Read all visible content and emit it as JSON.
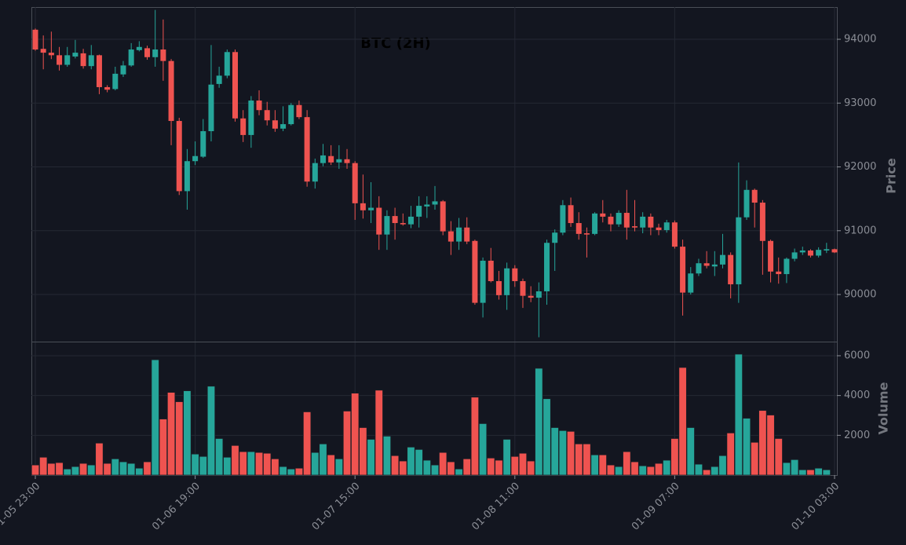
{
  "chart_data": {
    "type": "candlestick",
    "title": "BTC (2H)",
    "ylabel": "Price",
    "y2label": "Volume",
    "categories": [
      "01-05 23:00",
      null,
      null,
      null,
      null,
      null,
      null,
      null,
      null,
      null,
      null,
      null,
      null,
      null,
      null,
      null,
      null,
      null,
      null,
      null,
      "01-06 19:00",
      null,
      null,
      null,
      null,
      null,
      null,
      null,
      null,
      null,
      null,
      null,
      null,
      null,
      null,
      null,
      null,
      null,
      null,
      null,
      "01-07 15:00",
      null,
      null,
      null,
      null,
      null,
      null,
      null,
      null,
      null,
      null,
      null,
      null,
      null,
      null,
      null,
      null,
      null,
      null,
      null,
      "01-08 11:00",
      null,
      null,
      null,
      null,
      null,
      null,
      null,
      null,
      null,
      null,
      null,
      null,
      null,
      null,
      null,
      null,
      null,
      null,
      null,
      "01-09 07:00",
      null,
      null,
      null,
      null,
      null,
      null,
      null,
      null,
      null,
      null,
      null,
      null,
      null,
      null,
      null,
      null,
      null,
      null,
      null,
      "01-10 03:00"
    ],
    "open": [
      94150,
      93850,
      93790,
      93750,
      93600,
      93730,
      93780,
      93580,
      93750,
      93250,
      93220,
      93450,
      93590,
      93830,
      93860,
      93720,
      93840,
      93660,
      92720,
      91620,
      92090,
      92160,
      92560,
      93300,
      93430,
      93800,
      92760,
      92500,
      93040,
      92890,
      92730,
      92600,
      92670,
      92970,
      92780,
      91770,
      92060,
      92170,
      92070,
      92120,
      92060,
      91430,
      91320,
      91360,
      90940,
      91230,
      91120,
      91100,
      91220,
      91380,
      91410,
      91460,
      90990,
      90830,
      91050,
      90840,
      89870,
      90530,
      90210,
      89990,
      90410,
      90210,
      89980,
      89950,
      90050,
      90810,
      90970,
      91400,
      91120,
      90960,
      90950,
      91270,
      91220,
      91100,
      91280,
      91070,
      91050,
      91220,
      91050,
      91010,
      91130,
      90750,
      90030,
      90330,
      90490,
      90440,
      90470,
      90620,
      90160,
      91210,
      91640,
      91440,
      90840,
      90360,
      90320,
      90560,
      90660,
      90690,
      90610,
      90690,
      90710
    ],
    "high": [
      94170,
      94060,
      94120,
      93880,
      93880,
      93990,
      93850,
      93910,
      93760,
      93280,
      93570,
      93660,
      93940,
      93970,
      93900,
      94460,
      94310,
      93690,
      92770,
      92280,
      92400,
      92750,
      93910,
      93570,
      93840,
      93840,
      92890,
      93110,
      93200,
      93020,
      92890,
      92950,
      93000,
      93040,
      92890,
      92130,
      92360,
      92340,
      92340,
      92280,
      92090,
      91880,
      91760,
      91540,
      91320,
      91360,
      91270,
      91390,
      91540,
      91540,
      91700,
      91480,
      91150,
      91200,
      91210,
      90860,
      90580,
      90730,
      90370,
      90500,
      90460,
      90250,
      90130,
      90190,
      90860,
      91020,
      91480,
      91520,
      91290,
      91050,
      91290,
      91480,
      91270,
      91320,
      91640,
      91480,
      91290,
      91270,
      91110,
      91170,
      91160,
      90860,
      90430,
      90560,
      90680,
      90680,
      90950,
      90660,
      92070,
      91790,
      91660,
      91480,
      90860,
      90580,
      90580,
      90720,
      90750,
      90710,
      90740,
      90810,
      90720
    ],
    "low": [
      93820,
      93530,
      93690,
      93510,
      93570,
      93700,
      93540,
      93530,
      93140,
      93170,
      93200,
      93410,
      93570,
      93810,
      93680,
      93570,
      93350,
      92340,
      91560,
      91330,
      92030,
      92140,
      92400,
      93240,
      93390,
      92710,
      92390,
      92300,
      92810,
      92650,
      92550,
      92560,
      92650,
      92750,
      91690,
      91660,
      92010,
      92030,
      91970,
      91970,
      91170,
      91190,
      91120,
      90700,
      90700,
      90860,
      91080,
      91040,
      91050,
      91200,
      91330,
      90930,
      90620,
      90700,
      90790,
      89840,
      89640,
      90190,
      89920,
      89760,
      90120,
      89790,
      89880,
      89330,
      89840,
      90370,
      90930,
      91060,
      90860,
      90580,
      90930,
      91130,
      90990,
      91060,
      90860,
      90990,
      90960,
      90930,
      90930,
      90970,
      90720,
      89670,
      90000,
      90290,
      90410,
      90290,
      90410,
      89940,
      89870,
      91170,
      91050,
      90310,
      90190,
      90170,
      90180,
      90520,
      90620,
      90580,
      90580,
      90650,
      90650
    ],
    "close": [
      93840,
      93790,
      93750,
      93600,
      93750,
      93790,
      93580,
      93750,
      93250,
      93210,
      93460,
      93590,
      93840,
      93880,
      93720,
      93840,
      93660,
      92720,
      91620,
      92090,
      92170,
      92560,
      93290,
      93430,
      93800,
      92760,
      92500,
      93040,
      92890,
      92730,
      92600,
      92670,
      92970,
      92780,
      91770,
      92060,
      92180,
      92070,
      92120,
      92060,
      91430,
      91320,
      91360,
      90940,
      91230,
      91120,
      91100,
      91220,
      91390,
      91410,
      91460,
      90990,
      90830,
      91050,
      90830,
      89870,
      90530,
      90210,
      89990,
      90410,
      90210,
      89980,
      89950,
      90050,
      90810,
      90970,
      91400,
      91120,
      90950,
      90940,
      91270,
      91220,
      91100,
      91280,
      91050,
      91050,
      91220,
      91050,
      91010,
      91130,
      90750,
      90030,
      90330,
      90490,
      90450,
      90470,
      90620,
      90160,
      91210,
      91640,
      91440,
      90840,
      90360,
      90320,
      90560,
      90660,
      90690,
      90610,
      90700,
      90710,
      90660
    ],
    "volume": [
      510,
      900,
      590,
      630,
      310,
      430,
      590,
      510,
      1610,
      590,
      820,
      670,
      590,
      350,
      670,
      5800,
      2820,
      4160,
      3690,
      4240,
      1060,
      940,
      4470,
      1840,
      900,
      1490,
      1180,
      1180,
      1140,
      1100,
      820,
      430,
      310,
      350,
      3180,
      1140,
      1570,
      1020,
      820,
      3220,
      4120,
      2390,
      1800,
      4270,
      1960,
      980,
      710,
      1410,
      1290,
      750,
      510,
      1140,
      670,
      310,
      820,
      3920,
      2590,
      860,
      750,
      1800,
      940,
      1100,
      710,
      5370,
      3840,
      2390,
      2240,
      2200,
      1570,
      1570,
      1020,
      1020,
      510,
      430,
      1180,
      670,
      470,
      430,
      590,
      750,
      1840,
      5410,
      2390,
      550,
      270,
      430,
      980,
      2120,
      6080,
      2860,
      1650,
      3250,
      3020,
      1840,
      630,
      780,
      270,
      270,
      350,
      270,
      null
    ],
    "ylim": [
      89262,
      94505
    ],
    "yticks": [
      90000,
      91000,
      92000,
      93000,
      94000
    ],
    "y2lim": [
      0,
      6670
    ],
    "y2ticks": [
      2000,
      4000,
      6000
    ],
    "up_color": "#26a69a",
    "down_color": "#ef5350",
    "grid": true
  }
}
